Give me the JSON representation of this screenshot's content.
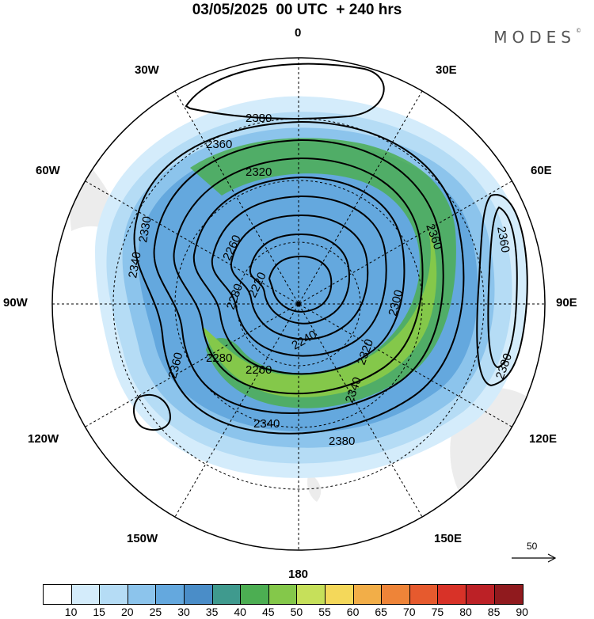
{
  "title": "03/05/2025  00 UTC  + 240 hrs",
  "brand": "MODES",
  "brand_mark": "©",
  "longitude_labels": {
    "n": "0",
    "s": "180",
    "e": "90E",
    "w": "90W",
    "e30": "30E",
    "w30": "30W",
    "e60": "60E",
    "w60": "60W",
    "e120": "120E",
    "w120": "120W",
    "e150": "150E",
    "w150": "150W"
  },
  "contour_labels": [
    "2380",
    "2360",
    "2320",
    "2330",
    "2340",
    "2260",
    "2280",
    "2220",
    "2300",
    "2240",
    "2320",
    "2280",
    "2260",
    "2340",
    "2360",
    "2380",
    "2360",
    "2360",
    "2340",
    "2380"
  ],
  "vector_scale": {
    "label": "50"
  },
  "colorbar": {
    "ticks": [
      "10",
      "15",
      "20",
      "25",
      "30",
      "35",
      "40",
      "45",
      "50",
      "55",
      "60",
      "65",
      "70",
      "75",
      "80",
      "85",
      "90"
    ],
    "colors": [
      "#ffffff",
      "#d4ecfb",
      "#b5dcf5",
      "#8cc4ec",
      "#64a8de",
      "#4a8dc8",
      "#3f9a8e",
      "#4cae52",
      "#84c84a",
      "#c6e05a",
      "#f4d85a",
      "#f2ae48",
      "#ee8438",
      "#e65a2e",
      "#d83228",
      "#bc2126",
      "#901a1e"
    ]
  }
}
